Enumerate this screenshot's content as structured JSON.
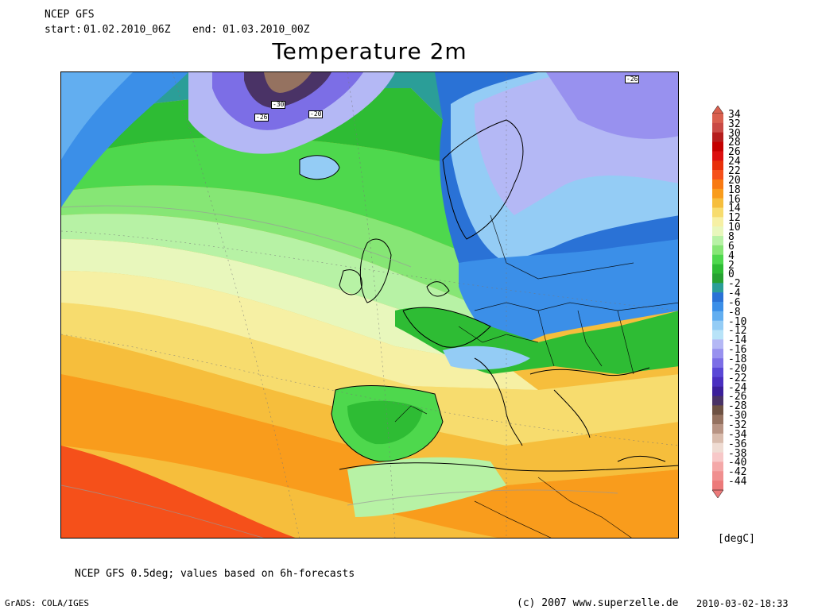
{
  "header": {
    "model": "NCEP GFS",
    "start_label": "start:",
    "start": "01.02.2010_06Z",
    "end_label": "end:",
    "end": "01.03.2010_00Z",
    "title": "Temperature 2m"
  },
  "map": {
    "region": "Europe / North Atlantic",
    "contour_labels": [
      "-30",
      "-26",
      "-20",
      "-26"
    ]
  },
  "colorbar": {
    "unit": "[degC]",
    "levels": [
      {
        "label": "34",
        "color": "#d9604f"
      },
      {
        "label": "32",
        "color": "#c94a45"
      },
      {
        "label": "30",
        "color": "#b51d1d"
      },
      {
        "label": "28",
        "color": "#c40000"
      },
      {
        "label": "26",
        "color": "#dc0f0f"
      },
      {
        "label": "24",
        "color": "#e8300a"
      },
      {
        "label": "22",
        "color": "#f5501a"
      },
      {
        "label": "20",
        "color": "#f87a12"
      },
      {
        "label": "18",
        "color": "#f99c1c"
      },
      {
        "label": "16",
        "color": "#f6be3c"
      },
      {
        "label": "14",
        "color": "#f7dc6e"
      },
      {
        "label": "12",
        "color": "#f6f0a4"
      },
      {
        "label": "10",
        "color": "#e8f7bc"
      },
      {
        "label": "8",
        "color": "#b7f2a5"
      },
      {
        "label": "6",
        "color": "#86e675"
      },
      {
        "label": "4",
        "color": "#4ed84d"
      },
      {
        "label": "2",
        "color": "#2ebc34"
      },
      {
        "label": "0",
        "color": "#27a232"
      },
      {
        "label": "-2",
        "color": "#2b9e98"
      },
      {
        "label": "-4",
        "color": "#2a72d6"
      },
      {
        "label": "-6",
        "color": "#3b8fe8"
      },
      {
        "label": "-8",
        "color": "#62aef0"
      },
      {
        "label": "-10",
        "color": "#94ccf5"
      },
      {
        "label": "-12",
        "color": "#b8e3f8"
      },
      {
        "label": "-14",
        "color": "#b4b8f5"
      },
      {
        "label": "-16",
        "color": "#9891ef"
      },
      {
        "label": "-18",
        "color": "#7c6ee6"
      },
      {
        "label": "-20",
        "color": "#5a48d6"
      },
      {
        "label": "-22",
        "color": "#4a2fc0"
      },
      {
        "label": "-24",
        "color": "#3b1f9a"
      },
      {
        "label": "-26",
        "color": "#4a3366"
      },
      {
        "label": "-28",
        "color": "#6e5243"
      },
      {
        "label": "-30",
        "color": "#957260"
      },
      {
        "label": "-32",
        "color": "#b89484"
      },
      {
        "label": "-34",
        "color": "#d9bcad"
      },
      {
        "label": "-36",
        "color": "#efdcd3"
      },
      {
        "label": "-38",
        "color": "#f7c8c8"
      },
      {
        "label": "-40",
        "color": "#f4a8a8"
      },
      {
        "label": "-42",
        "color": "#f08f8f"
      },
      {
        "label": "-44",
        "color": "#ec7a7a"
      }
    ]
  },
  "footer": {
    "note": "NCEP GFS 0.5deg; values based on 6h-forecasts",
    "grads": "GrADS: COLA/IGES",
    "copyright": "(c) 2007 www.superzelle.de",
    "timestamp": "2010-03-02-18:33"
  }
}
